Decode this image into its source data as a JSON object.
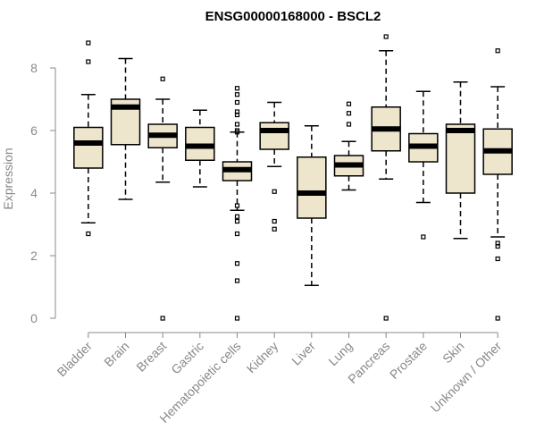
{
  "chart_data": {
    "type": "boxplot",
    "title": "ENSG00000168000 - BSCL2",
    "xlabel": "",
    "ylabel": "Expression",
    "ylim": [
      0,
      9
    ],
    "yticks": [
      0,
      2,
      4,
      6,
      8
    ],
    "colors": {
      "box_fill": "#ede6cc",
      "stroke": "#000000",
      "axis": "#888888"
    },
    "categories": [
      "Bladder",
      "Brain",
      "Breast",
      "Gastric",
      "Hematopoietic cells",
      "Kidney",
      "Liver",
      "Lung",
      "Pancreas",
      "Prostate",
      "Skin",
      "Unknown / Other"
    ],
    "boxes": [
      {
        "name": "Bladder",
        "low": 3.05,
        "q1": 4.8,
        "median": 5.6,
        "q3": 6.1,
        "high": 7.15,
        "outliers": [
          8.8,
          8.2,
          2.7
        ]
      },
      {
        "name": "Brain",
        "low": 3.8,
        "q1": 5.55,
        "median": 6.75,
        "q3": 7.0,
        "high": 8.3,
        "outliers": []
      },
      {
        "name": "Breast",
        "low": 4.35,
        "q1": 5.45,
        "median": 5.85,
        "q3": 6.2,
        "high": 7.0,
        "outliers": [
          7.65,
          0.0
        ]
      },
      {
        "name": "Gastric",
        "low": 4.2,
        "q1": 5.05,
        "median": 5.5,
        "q3": 6.1,
        "high": 6.65,
        "outliers": []
      },
      {
        "name": "Hematopoietic cells",
        "low": 3.45,
        "q1": 4.4,
        "median": 4.75,
        "q3": 5.0,
        "high": 5.95,
        "outliers": [
          7.35,
          7.15,
          6.9,
          6.6,
          6.5,
          6.2,
          6.0,
          5.95,
          3.6,
          3.25,
          3.1,
          2.7,
          1.75,
          1.2,
          0.0
        ]
      },
      {
        "name": "Kidney",
        "low": 4.85,
        "q1": 5.4,
        "median": 6.0,
        "q3": 6.25,
        "high": 6.9,
        "outliers": [
          4.05,
          3.1,
          2.85
        ]
      },
      {
        "name": "Liver",
        "low": 1.05,
        "q1": 3.2,
        "median": 4.0,
        "q3": 5.15,
        "high": 6.15,
        "outliers": []
      },
      {
        "name": "Lung",
        "low": 4.1,
        "q1": 4.55,
        "median": 4.9,
        "q3": 5.2,
        "high": 5.65,
        "outliers": [
          6.85,
          6.55,
          6.2
        ]
      },
      {
        "name": "Pancreas",
        "low": 4.45,
        "q1": 5.35,
        "median": 6.05,
        "q3": 6.75,
        "high": 8.55,
        "outliers": [
          9.0,
          0.0
        ]
      },
      {
        "name": "Prostate",
        "low": 3.7,
        "q1": 5.0,
        "median": 5.5,
        "q3": 5.9,
        "high": 7.25,
        "outliers": [
          2.6
        ]
      },
      {
        "name": "Skin",
        "low": 2.55,
        "q1": 4.0,
        "median": 6.0,
        "q3": 6.2,
        "high": 7.55,
        "outliers": []
      },
      {
        "name": "Unknown / Other",
        "low": 2.6,
        "q1": 4.6,
        "median": 5.35,
        "q3": 6.05,
        "high": 7.4,
        "outliers": [
          8.55,
          2.4,
          2.3,
          1.9,
          0.0
        ]
      }
    ]
  }
}
